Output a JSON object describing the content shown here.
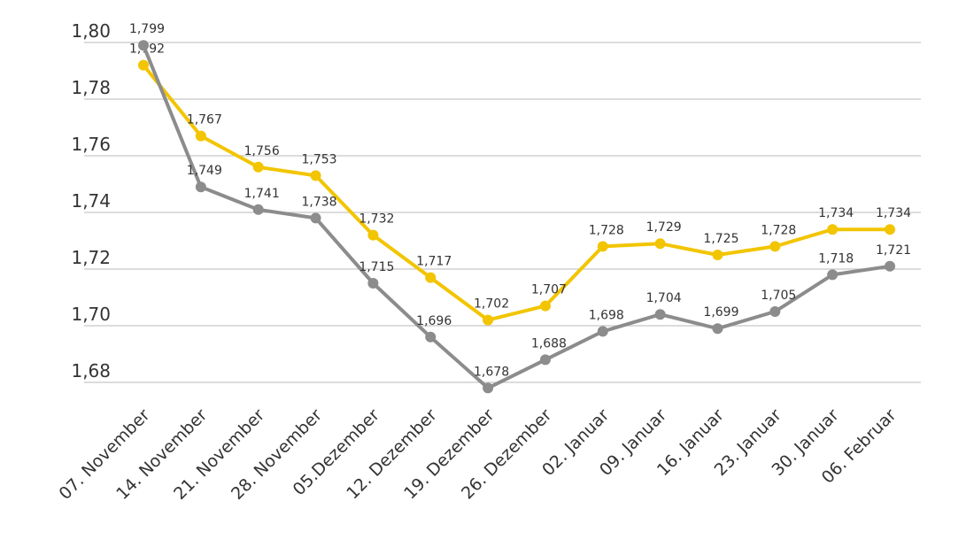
{
  "chart_data": {
    "type": "line",
    "categories": [
      "07. November",
      "14. November",
      "21. November",
      "28. November",
      "05.Dezember",
      "12. Dezember",
      "19. Dezember",
      "26. Dezember",
      "02. Januar",
      "09. Januar",
      "16. Januar",
      "23. Januar",
      "30. Januar",
      "06. Februar"
    ],
    "series": [
      {
        "color": "#f2c500",
        "values": [
          1.792,
          1.767,
          1.756,
          1.753,
          1.732,
          1.717,
          1.702,
          1.707,
          1.728,
          1.729,
          1.725,
          1.728,
          1.734,
          1.734
        ],
        "value_labels": [
          "1,792",
          "1,767",
          "1,756",
          "1,753",
          "1,732",
          "1,717",
          "1,702",
          "1,707",
          "1,728",
          "1,729",
          "1,725",
          "1,728",
          "1,734",
          "1,734"
        ]
      },
      {
        "color": "#8c8c8c",
        "values": [
          1.799,
          1.749,
          1.741,
          1.738,
          1.715,
          1.696,
          1.678,
          1.688,
          1.698,
          1.704,
          1.699,
          1.705,
          1.718,
          1.721
        ],
        "value_labels": [
          "1,799",
          "1,749",
          "1,741",
          "1,738",
          "1,715",
          "1,696",
          "1,678",
          "1,688",
          "1,698",
          "1,704",
          "1,699",
          "1,705",
          "1,718",
          "1,721"
        ]
      }
    ],
    "ylim": [
      1.68,
      1.8
    ],
    "yticks": [
      {
        "value": 1.68,
        "label": "1,68"
      },
      {
        "value": 1.7,
        "label": "1,70"
      },
      {
        "value": 1.72,
        "label": "1,72"
      },
      {
        "value": 1.74,
        "label": "1,74"
      },
      {
        "value": 1.76,
        "label": "1,76"
      },
      {
        "value": 1.78,
        "label": "1,78"
      },
      {
        "value": 1.8,
        "label": "1,80"
      }
    ],
    "grid": true
  }
}
